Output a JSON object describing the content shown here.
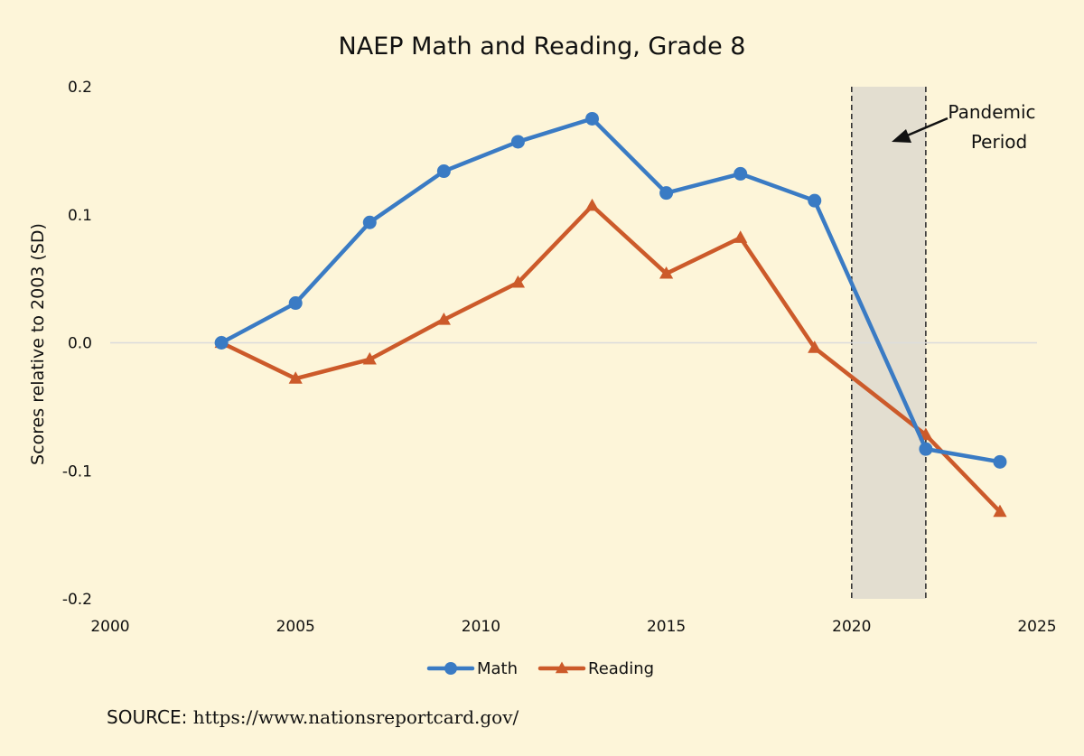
{
  "chart_data": {
    "type": "line",
    "title": "NAEP Math and Reading, Grade 8",
    "xlabel": "",
    "ylabel": "Scores relative to 2003 (SD)",
    "xlim": [
      2000,
      2025
    ],
    "ylim": [
      -0.2,
      0.2
    ],
    "x_ticks": [
      2000,
      2005,
      2010,
      2015,
      2020,
      2025
    ],
    "y_ticks": [
      -0.2,
      -0.1,
      0.0,
      0.1,
      0.2
    ],
    "y_tick_labels": [
      "-0.2",
      "-0.1",
      "0.0",
      "0.1",
      "0.2"
    ],
    "grid": "zero line only",
    "legend_position": "bottom-center",
    "x": [
      2003,
      2005,
      2007,
      2009,
      2011,
      2013,
      2015,
      2017,
      2019,
      2022,
      2024
    ],
    "series": [
      {
        "name": "Math",
        "marker": "circle",
        "color": "#3a7bc4",
        "values": [
          0.0,
          0.031,
          0.094,
          0.134,
          0.157,
          0.175,
          0.117,
          0.132,
          0.111,
          -0.083,
          -0.093
        ]
      },
      {
        "name": "Reading",
        "marker": "triangle",
        "color": "#cc5a2a",
        "values": [
          0.0,
          -0.028,
          -0.013,
          0.018,
          0.047,
          0.107,
          0.054,
          0.082,
          -0.004,
          -0.072,
          -0.132
        ]
      }
    ],
    "shaded_region": {
      "x_start": 2020,
      "x_end": 2022,
      "color": "#e3ded0"
    },
    "annotation": {
      "lines": [
        "Pandemic",
        "Period"
      ],
      "points_to": "shaded_region"
    }
  },
  "source": {
    "label": "SOURCE",
    "separator": ": ",
    "url": "https://www.nationsreportcard.gov/"
  }
}
